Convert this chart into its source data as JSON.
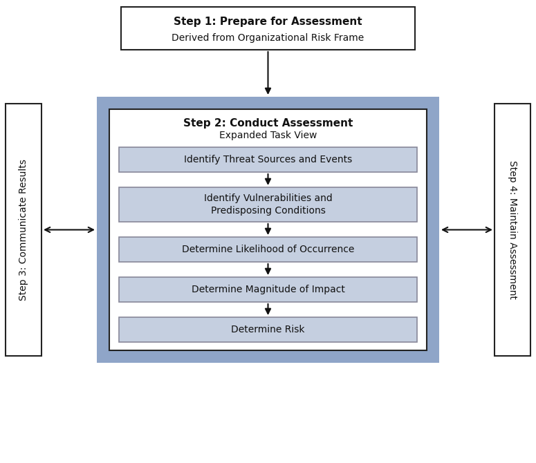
{
  "step1_title": "Step 1: Prepare for Assessment",
  "step1_subtitle": "Derived from Organizational Risk Frame",
  "step2_title": "Step 2: Conduct Assessment",
  "step2_subtitle": "Expanded Task View",
  "step3_label": "Step 3: Communicate Results",
  "step4_label": "Step 4: Maintain Assessment",
  "substeps": [
    "Identify Threat Sources and Events",
    "Identify Vulnerabilities and\nPredisposing Conditions",
    "Determine Likelihood of Occurrence",
    "Determine Magnitude of Impact",
    "Determine Risk"
  ],
  "bg_color": "#ffffff",
  "step1_box_fc": "#ffffff",
  "step1_box_ec": "#222222",
  "outer_blue_fc": "#8fa5c8",
  "outer_blue_ec": "#8fa5c8",
  "inner_box_fc": "#ffffff",
  "inner_box_ec": "#222222",
  "substep_fc": "#c5cfe0",
  "substep_ec": "#888899",
  "side_box_fc": "#ffffff",
  "side_box_ec": "#222222",
  "arrow_color": "#111111",
  "text_color": "#111111",
  "step1_title_fs": 11,
  "step1_sub_fs": 10,
  "step2_title_fs": 11,
  "step2_sub_fs": 10,
  "substep_fs": 10,
  "side_fs": 10
}
